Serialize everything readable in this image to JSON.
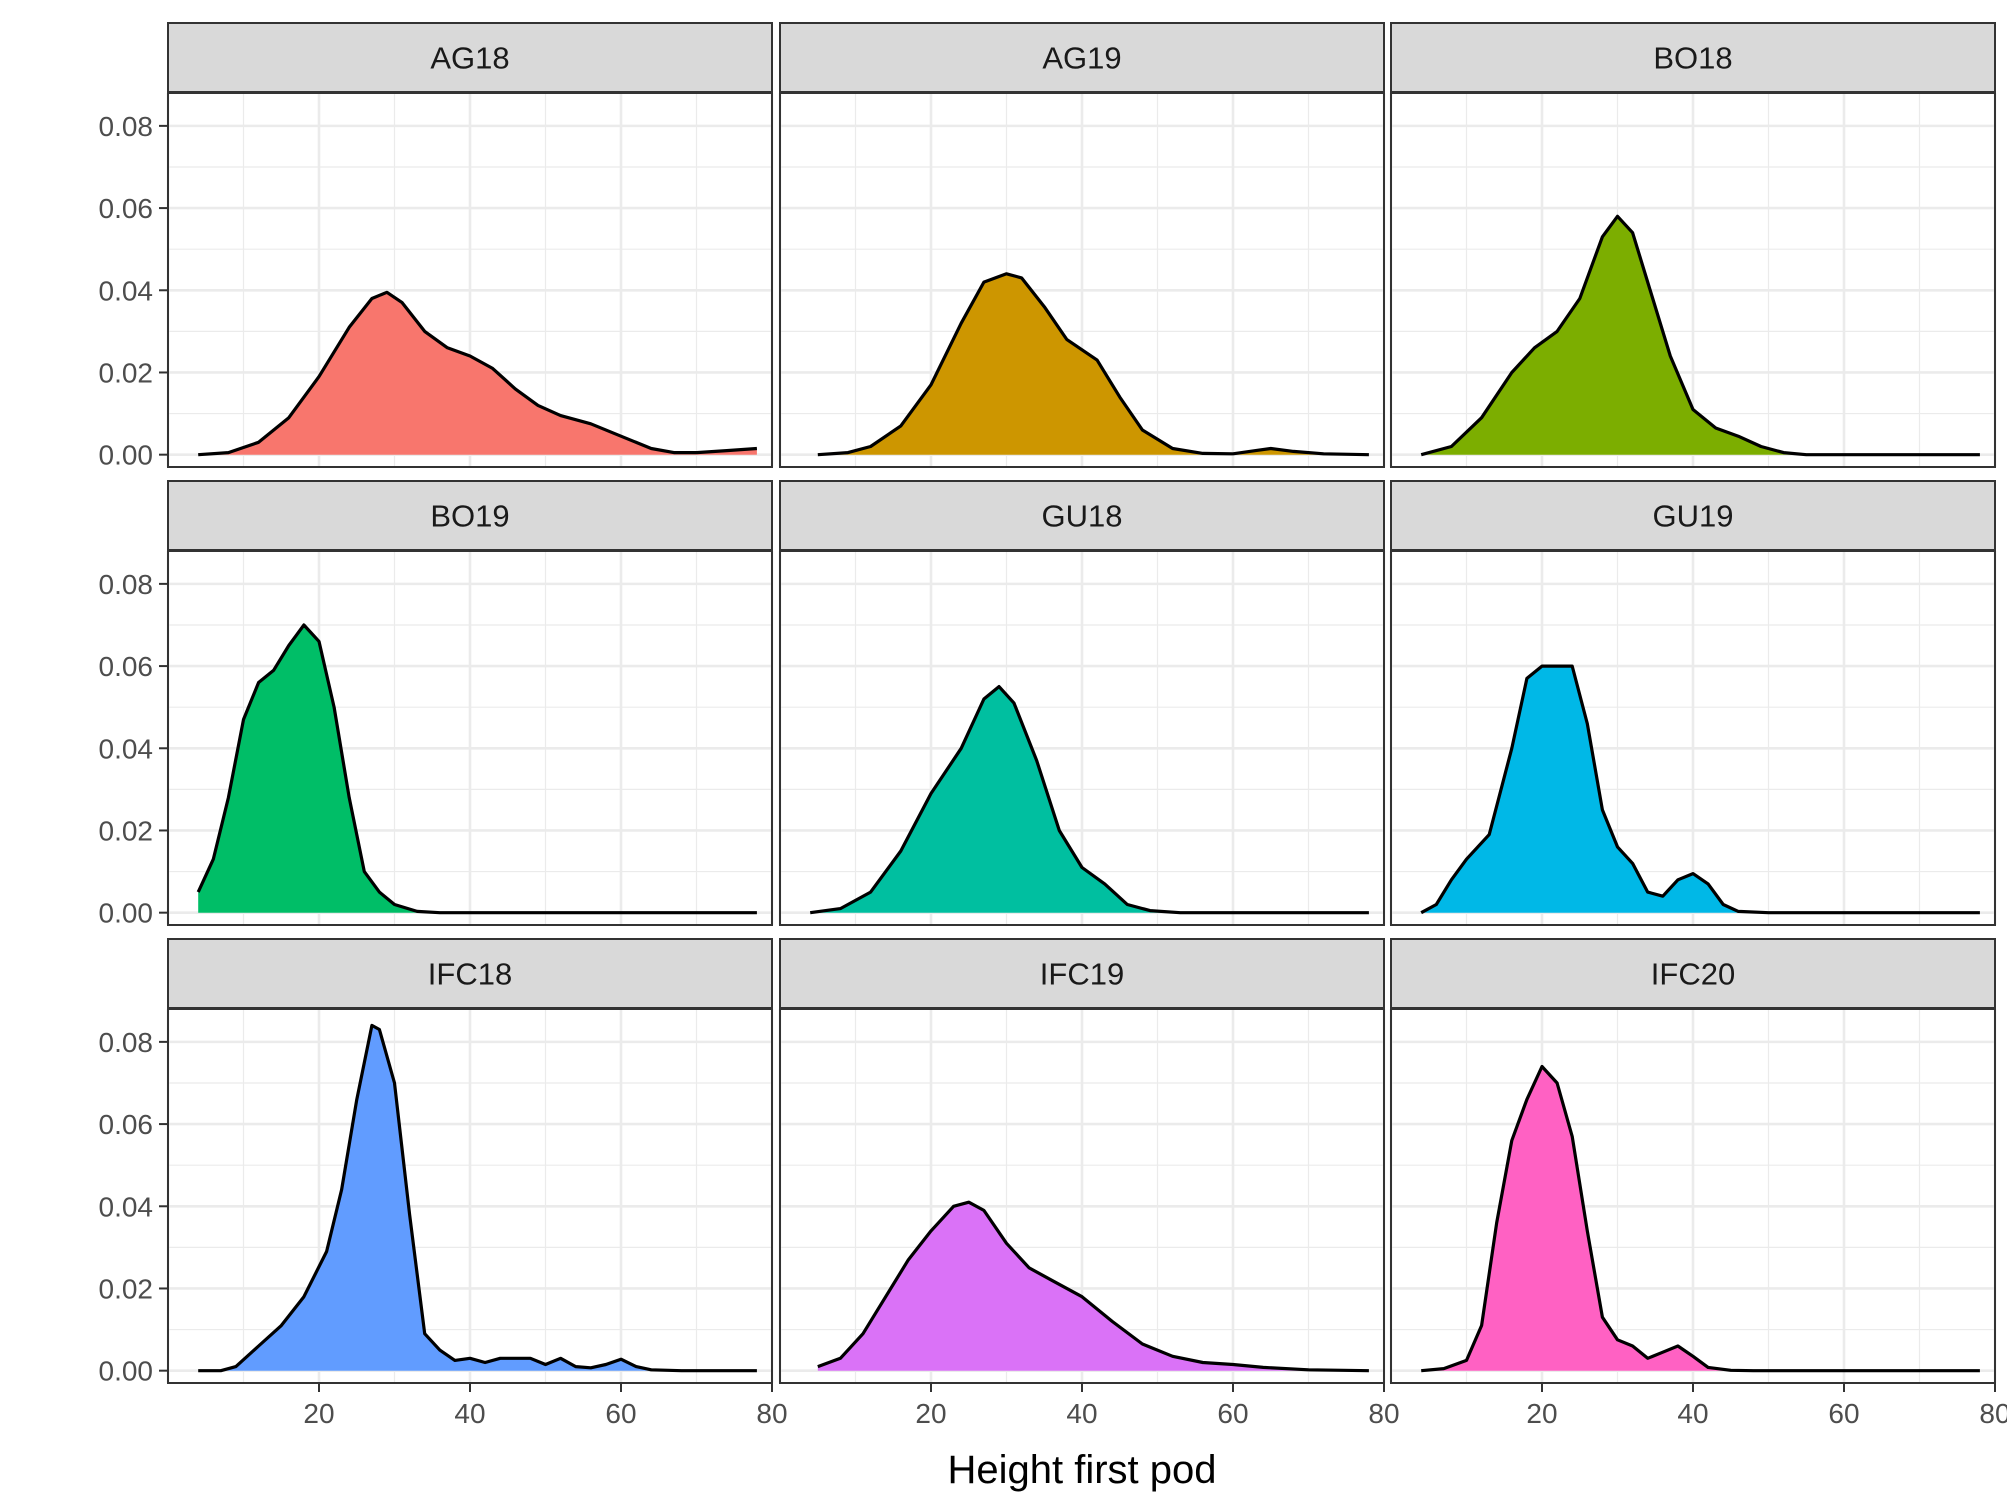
{
  "chart_data": {
    "type": "area",
    "subtype": "density",
    "facet_layout": "3x3",
    "xlabel": "Height first pod",
    "ylabel": "",
    "xlim": [
      0,
      80
    ],
    "ylim": [
      -0.003,
      0.088
    ],
    "x_ticks": [
      20,
      40,
      60,
      80
    ],
    "y_ticks": [
      0.0,
      0.02,
      0.04,
      0.06,
      0.08
    ],
    "y_tick_labels": [
      "0.00",
      "0.02",
      "0.04",
      "0.06",
      "0.08"
    ],
    "x_tick_labels": [
      "20",
      "40",
      "60",
      "80"
    ],
    "grid": true,
    "legend": "none",
    "panels": [
      {
        "name": "AG18",
        "color": "#F8766D",
        "points": [
          [
            4,
            0
          ],
          [
            8,
            0.0005
          ],
          [
            12,
            0.003
          ],
          [
            16,
            0.009
          ],
          [
            20,
            0.019
          ],
          [
            24,
            0.031
          ],
          [
            27,
            0.038
          ],
          [
            29,
            0.0395
          ],
          [
            31,
            0.037
          ],
          [
            34,
            0.03
          ],
          [
            37,
            0.026
          ],
          [
            40,
            0.024
          ],
          [
            43,
            0.021
          ],
          [
            46,
            0.016
          ],
          [
            49,
            0.012
          ],
          [
            52,
            0.0095
          ],
          [
            56,
            0.0075
          ],
          [
            60,
            0.0045
          ],
          [
            64,
            0.0015
          ],
          [
            67,
            0.0005
          ],
          [
            70,
            0.0005
          ],
          [
            74,
            0.001
          ],
          [
            78,
            0.0015
          ]
        ]
      },
      {
        "name": "AG19",
        "color": "#CD9600",
        "points": [
          [
            5,
            0
          ],
          [
            9,
            0.0005
          ],
          [
            12,
            0.002
          ],
          [
            16,
            0.007
          ],
          [
            20,
            0.017
          ],
          [
            24,
            0.032
          ],
          [
            27,
            0.042
          ],
          [
            30,
            0.044
          ],
          [
            32,
            0.043
          ],
          [
            35,
            0.036
          ],
          [
            38,
            0.028
          ],
          [
            42,
            0.023
          ],
          [
            45,
            0.014
          ],
          [
            48,
            0.006
          ],
          [
            52,
            0.0015
          ],
          [
            56,
            0.0003
          ],
          [
            60,
            0.0002
          ],
          [
            63,
            0.001
          ],
          [
            65,
            0.0015
          ],
          [
            68,
            0.0008
          ],
          [
            72,
            0.0002
          ],
          [
            78,
            0
          ]
        ]
      },
      {
        "name": "BO18",
        "color": "#7CAE00",
        "points": [
          [
            4,
            0
          ],
          [
            8,
            0.002
          ],
          [
            12,
            0.009
          ],
          [
            16,
            0.02
          ],
          [
            19,
            0.026
          ],
          [
            22,
            0.03
          ],
          [
            25,
            0.038
          ],
          [
            28,
            0.053
          ],
          [
            30,
            0.058
          ],
          [
            32,
            0.054
          ],
          [
            34,
            0.042
          ],
          [
            37,
            0.024
          ],
          [
            40,
            0.011
          ],
          [
            43,
            0.0065
          ],
          [
            46,
            0.0045
          ],
          [
            49,
            0.002
          ],
          [
            52,
            0.0005
          ],
          [
            55,
            0
          ],
          [
            78,
            0
          ]
        ]
      },
      {
        "name": "BO19",
        "color": "#00BE67",
        "points": [
          [
            4,
            0.005
          ],
          [
            6,
            0.013
          ],
          [
            8,
            0.028
          ],
          [
            10,
            0.047
          ],
          [
            12,
            0.056
          ],
          [
            14,
            0.059
          ],
          [
            16,
            0.065
          ],
          [
            18,
            0.07
          ],
          [
            20,
            0.066
          ],
          [
            22,
            0.05
          ],
          [
            24,
            0.028
          ],
          [
            26,
            0.01
          ],
          [
            28,
            0.005
          ],
          [
            30,
            0.002
          ],
          [
            33,
            0.0003
          ],
          [
            36,
            0
          ],
          [
            78,
            0
          ]
        ]
      },
      {
        "name": "GU18",
        "color": "#00BFA0",
        "points": [
          [
            4,
            0
          ],
          [
            8,
            0.001
          ],
          [
            12,
            0.005
          ],
          [
            16,
            0.015
          ],
          [
            20,
            0.029
          ],
          [
            24,
            0.04
          ],
          [
            27,
            0.052
          ],
          [
            29,
            0.055
          ],
          [
            31,
            0.051
          ],
          [
            34,
            0.037
          ],
          [
            37,
            0.02
          ],
          [
            40,
            0.011
          ],
          [
            43,
            0.007
          ],
          [
            46,
            0.002
          ],
          [
            49,
            0.0005
          ],
          [
            53,
            0
          ],
          [
            78,
            0
          ]
        ]
      },
      {
        "name": "GU19",
        "color": "#00B8E7",
        "points": [
          [
            4,
            0
          ],
          [
            6,
            0.002
          ],
          [
            8,
            0.008
          ],
          [
            10,
            0.013
          ],
          [
            13,
            0.019
          ],
          [
            16,
            0.04
          ],
          [
            18,
            0.057
          ],
          [
            20,
            0.06
          ],
          [
            22,
            0.06
          ],
          [
            24,
            0.06
          ],
          [
            26,
            0.046
          ],
          [
            28,
            0.025
          ],
          [
            30,
            0.016
          ],
          [
            32,
            0.012
          ],
          [
            34,
            0.005
          ],
          [
            36,
            0.004
          ],
          [
            38,
            0.008
          ],
          [
            40,
            0.0095
          ],
          [
            42,
            0.007
          ],
          [
            44,
            0.002
          ],
          [
            46,
            0.0003
          ],
          [
            50,
            0
          ],
          [
            78,
            0
          ]
        ]
      },
      {
        "name": "IFC18",
        "color": "#619CFF",
        "points": [
          [
            4,
            0
          ],
          [
            7,
            0
          ],
          [
            9,
            0.001
          ],
          [
            12,
            0.006
          ],
          [
            15,
            0.011
          ],
          [
            18,
            0.018
          ],
          [
            21,
            0.029
          ],
          [
            23,
            0.044
          ],
          [
            25,
            0.066
          ],
          [
            27,
            0.084
          ],
          [
            28,
            0.083
          ],
          [
            30,
            0.07
          ],
          [
            32,
            0.038
          ],
          [
            34,
            0.009
          ],
          [
            36,
            0.005
          ],
          [
            38,
            0.0025
          ],
          [
            40,
            0.003
          ],
          [
            42,
            0.002
          ],
          [
            44,
            0.003
          ],
          [
            46,
            0.003
          ],
          [
            48,
            0.003
          ],
          [
            50,
            0.0015
          ],
          [
            52,
            0.003
          ],
          [
            54,
            0.001
          ],
          [
            56,
            0.0007
          ],
          [
            58,
            0.0015
          ],
          [
            60,
            0.0028
          ],
          [
            62,
            0.001
          ],
          [
            64,
            0.0002
          ],
          [
            68,
            0
          ],
          [
            78,
            0
          ]
        ]
      },
      {
        "name": "IFC19",
        "color": "#DA72F7",
        "points": [
          [
            5,
            0.001
          ],
          [
            8,
            0.003
          ],
          [
            11,
            0.009
          ],
          [
            14,
            0.018
          ],
          [
            17,
            0.027
          ],
          [
            20,
            0.034
          ],
          [
            23,
            0.04
          ],
          [
            25,
            0.041
          ],
          [
            27,
            0.039
          ],
          [
            30,
            0.031
          ],
          [
            33,
            0.025
          ],
          [
            36,
            0.022
          ],
          [
            40,
            0.018
          ],
          [
            44,
            0.012
          ],
          [
            48,
            0.0065
          ],
          [
            52,
            0.0035
          ],
          [
            56,
            0.002
          ],
          [
            60,
            0.0015
          ],
          [
            64,
            0.0008
          ],
          [
            70,
            0.0002
          ],
          [
            78,
            0
          ]
        ]
      },
      {
        "name": "IFC20",
        "color": "#FF61C3",
        "points": [
          [
            4,
            0
          ],
          [
            7,
            0.0005
          ],
          [
            10,
            0.0025
          ],
          [
            12,
            0.011
          ],
          [
            14,
            0.036
          ],
          [
            16,
            0.056
          ],
          [
            18,
            0.066
          ],
          [
            20,
            0.074
          ],
          [
            22,
            0.07
          ],
          [
            24,
            0.057
          ],
          [
            26,
            0.034
          ],
          [
            28,
            0.013
          ],
          [
            30,
            0.0075
          ],
          [
            32,
            0.006
          ],
          [
            34,
            0.003
          ],
          [
            36,
            0.0045
          ],
          [
            38,
            0.006
          ],
          [
            40,
            0.0035
          ],
          [
            42,
            0.0008
          ],
          [
            45,
            0.0001
          ],
          [
            48,
            0
          ],
          [
            78,
            0
          ]
        ]
      }
    ]
  }
}
